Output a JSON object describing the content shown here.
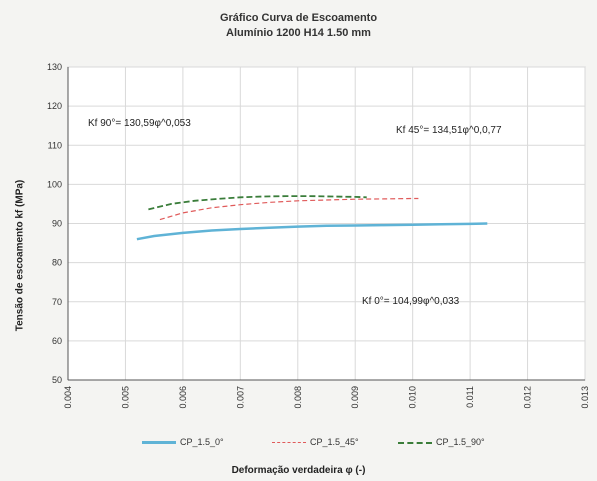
{
  "chart_data": {
    "type": "line",
    "title": "Gráfico Curva de Escoamento",
    "subtitle": "Alumínio 1200 H14 1.50 mm",
    "xlabel": "Deformação verdadeira φ (-)",
    "ylabel": "Tensão de escoamento kf (MPa)",
    "xlim": [
      0.004,
      0.013
    ],
    "ylim": [
      50,
      130
    ],
    "x_ticks": [
      "0.004",
      "0.005",
      "0.006",
      "0.007",
      "0.008",
      "0.009",
      "0.010",
      "0.011",
      "0.012",
      "0.013"
    ],
    "y_ticks": [
      "50",
      "60",
      "70",
      "80",
      "90",
      "100",
      "110",
      "120",
      "130"
    ],
    "grid": true,
    "legend": "bottom",
    "annotations": [
      "Kf 90°= 130,59φ^0,053",
      "Kf 45°= 134,51φ^0,0,77",
      "Kf 0°= 104,99φ^0,033"
    ],
    "series": [
      {
        "name": "CP_1.5_0°",
        "color": "#5fb3d6",
        "style": "solid",
        "x": [
          0.0052,
          0.0055,
          0.006,
          0.0065,
          0.007,
          0.0075,
          0.008,
          0.0085,
          0.009,
          0.0095,
          0.01,
          0.0105,
          0.011,
          0.0113
        ],
        "y": [
          86.0,
          86.8,
          87.6,
          88.2,
          88.6,
          88.9,
          89.2,
          89.4,
          89.5,
          89.6,
          89.7,
          89.8,
          89.9,
          90.0
        ]
      },
      {
        "name": "CP_1.5_45°",
        "color": "#e05a5a",
        "style": "dashed",
        "x": [
          0.0056,
          0.006,
          0.0065,
          0.007,
          0.0075,
          0.008,
          0.0085,
          0.009,
          0.0095,
          0.01,
          0.0101
        ],
        "y": [
          91.0,
          92.7,
          94.0,
          94.8,
          95.4,
          95.8,
          96.0,
          96.2,
          96.3,
          96.4,
          96.4
        ]
      },
      {
        "name": "CP_1.5_90°",
        "color": "#3a7d3a",
        "style": "dashed",
        "x": [
          0.0054,
          0.0058,
          0.0062,
          0.0066,
          0.007,
          0.0074,
          0.0078,
          0.0082,
          0.0086,
          0.009,
          0.0092
        ],
        "y": [
          93.6,
          95.0,
          95.8,
          96.3,
          96.7,
          96.9,
          97.0,
          97.0,
          96.9,
          96.8,
          96.7
        ]
      }
    ]
  }
}
